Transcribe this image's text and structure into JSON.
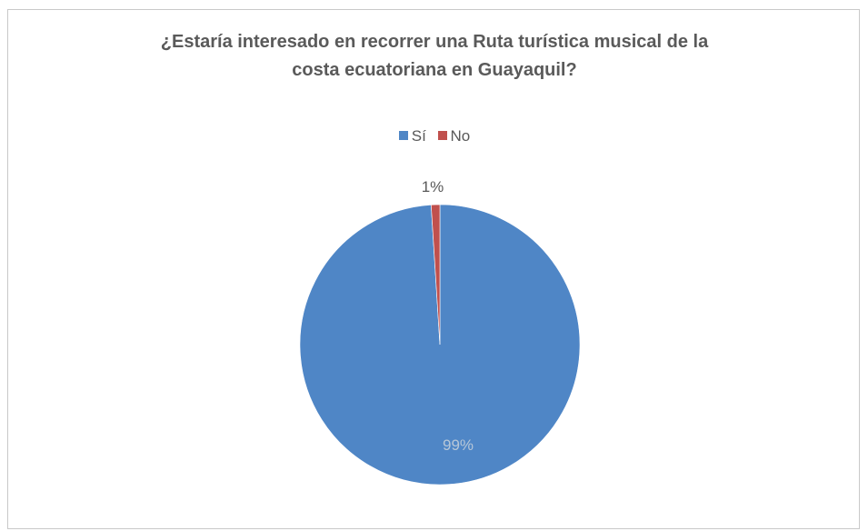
{
  "chart_data": {
    "type": "pie",
    "title_lines": [
      "¿Estaría interesado en recorrer una Ruta turística musical de la",
      "costa ecuatoriana en Guayaquil?"
    ],
    "categories": [
      "Sí",
      "No"
    ],
    "values": [
      99,
      1
    ],
    "data_labels": [
      "99%",
      "1%"
    ],
    "colors": [
      "#4f86c6",
      "#c0504d"
    ],
    "legend_position": "top"
  }
}
